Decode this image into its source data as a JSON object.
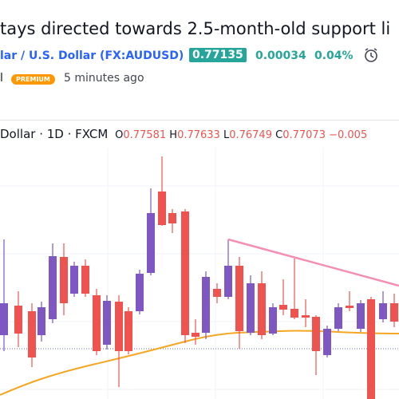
{
  "header": {
    "title": "tays directed towards 2.5-month-old support li",
    "symbol_name": "lar / U.S. Dollar",
    "symbol_code": "(FX:AUDUSD)",
    "price": "0.77135",
    "change": "0.00034",
    "change_pct": "0.04%",
    "author": "l",
    "badge": "PREMIUM",
    "time": "5 minutes ago"
  },
  "chart": {
    "legend_name": "Dollar · 1D · FXCM",
    "o_label": "O",
    "o_value": "0.77581",
    "h_label": "H",
    "h_value": "0.77633",
    "l_label": "L",
    "l_value": "0.76749",
    "c_label": "C",
    "c_value": "0.77073",
    "delta": "−0.005"
  }
}
